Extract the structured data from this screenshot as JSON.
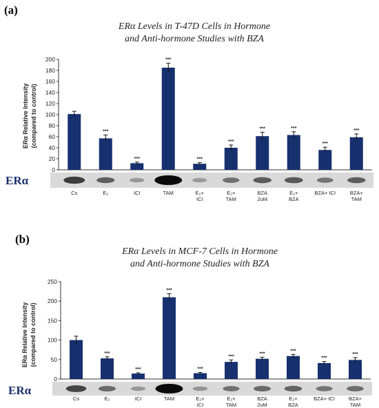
{
  "colors": {
    "bar": "#17306e",
    "blot_label": "#1b2f6b",
    "axis": "#333333"
  },
  "panels": [
    {
      "letter": "(a)",
      "title_line1": "ERα Levels in T-47D Cells in Hormone",
      "title_line2": "and Anti-hormone Studies with BZA",
      "blot_label": "ERα"
    },
    {
      "letter": "(b)",
      "title_line1": "ERα Levels in MCF-7 Cells in Hormone",
      "title_line2": "and Anti-hormone Studies with BZA",
      "blot_label": "ERα"
    }
  ],
  "chart_data": [
    {
      "type": "bar",
      "title": "ERα Levels in T-47D Cells in Hormone and Anti-hormone Studies with BZA",
      "ylabel_line1": "ERα Relative Intensity",
      "ylabel_line2": "(compared to control)",
      "ylim": [
        0,
        200
      ],
      "yticks": [
        0,
        20,
        40,
        60,
        80,
        100,
        120,
        140,
        160,
        180,
        200
      ],
      "categories": [
        {
          "line1": "Cs",
          "line2": ""
        },
        {
          "line1": "E₂",
          "line2": ""
        },
        {
          "line1": "ICI",
          "line2": ""
        },
        {
          "line1": "TAM",
          "line2": ""
        },
        {
          "line1": "E₂+",
          "line2": "ICI"
        },
        {
          "line1": "E₂+",
          "line2": "TAM"
        },
        {
          "line1": "BZA",
          "line2": "2uM"
        },
        {
          "line1": "E₂+",
          "line2": "BZA"
        },
        {
          "line1": "BZA+ ICI",
          "line2": ""
        },
        {
          "line1": "BZA+",
          "line2": "TAM"
        }
      ],
      "values": [
        101,
        57,
        12,
        185,
        11,
        40,
        61,
        63,
        36,
        59
      ],
      "errors": [
        5,
        6,
        2,
        8,
        2,
        5,
        7,
        6,
        5,
        6
      ],
      "significance": [
        "",
        "***",
        "***",
        "***",
        "***",
        "***",
        "***",
        "***",
        "***",
        "***"
      ],
      "grid": false
    },
    {
      "type": "bar",
      "title": "ERα Levels in MCF-7 Cells in Hormone and Anti-hormone Studies with BZA",
      "ylabel_line1": "ERα Relative Intensity",
      "ylabel_line2": "(compared to control)",
      "ylim": [
        0,
        250
      ],
      "yticks": [
        0,
        50,
        100,
        150,
        200,
        250
      ],
      "categories": [
        {
          "line1": "Cs",
          "line2": ""
        },
        {
          "line1": "E₂",
          "line2": ""
        },
        {
          "line1": "ICI",
          "line2": ""
        },
        {
          "line1": "TAM",
          "line2": ""
        },
        {
          "line1": "E₂+",
          "line2": "ICI"
        },
        {
          "line1": "E₂+",
          "line2": "TAM"
        },
        {
          "line1": "BZA",
          "line2": "2uM"
        },
        {
          "line1": "E₂+",
          "line2": "BZA"
        },
        {
          "line1": "BZA+ ICI",
          "line2": ""
        },
        {
          "line1": "BZA+",
          "line2": "TAM"
        }
      ],
      "values": [
        100,
        53,
        14,
        210,
        15,
        44,
        52,
        59,
        41,
        49
      ],
      "errors": [
        10,
        4,
        2,
        9,
        2,
        5,
        4,
        4,
        4,
        6
      ],
      "significance": [
        "",
        "***",
        "***",
        "***",
        "***",
        "***",
        "***",
        "***",
        "***",
        "***"
      ],
      "grid": false
    }
  ]
}
